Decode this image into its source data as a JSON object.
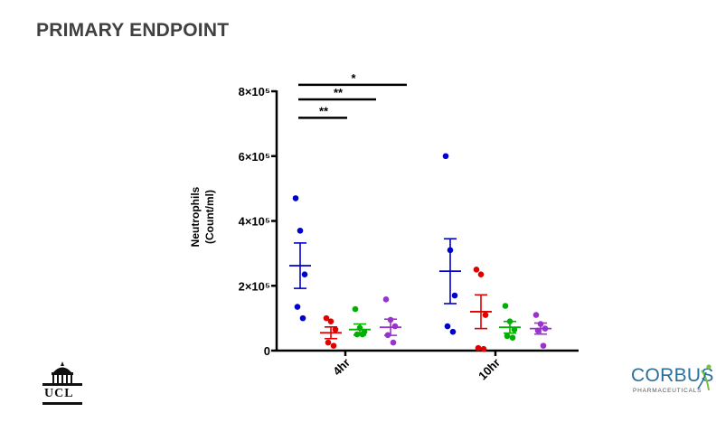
{
  "slide": {
    "title": "PRIMARY ENDPOINT"
  },
  "logos": {
    "left": "UCL",
    "right_name": "CORBUS",
    "right_sub": "PHARMACEUTICALS"
  },
  "chart_data": {
    "type": "scatter",
    "ylabel_line1": "Neutrophils",
    "ylabel_line2": "(Count/ml)",
    "yticks": [
      {
        "value": 0,
        "label": "0"
      },
      {
        "value": 200000,
        "label": "2×10⁵"
      },
      {
        "value": 400000,
        "label": "4×10⁵"
      },
      {
        "value": 600000,
        "label": "6×10⁵"
      },
      {
        "value": 800000,
        "label": "8×10⁵"
      }
    ],
    "ylim": [
      0,
      800000
    ],
    "groups": [
      "4hr",
      "10hr"
    ],
    "series": [
      {
        "color": "#0000cc",
        "points": [
          [
            470000,
            370000,
            235000,
            135000,
            100000
          ],
          [
            600000,
            310000,
            170000,
            75000,
            58000
          ]
        ],
        "mean": [
          262000,
          245000
        ],
        "sem": [
          70000,
          100000
        ]
      },
      {
        "color": "#e00000",
        "points": [
          [
            100000,
            90000,
            65000,
            25000,
            15000
          ],
          [
            250000,
            235000,
            110000,
            8000,
            5000
          ]
        ],
        "mean": [
          55000,
          120000
        ],
        "sem": [
          18000,
          52000
        ]
      },
      {
        "color": "#00b000",
        "points": [
          [
            128000,
            70000,
            58000,
            50000,
            50000
          ],
          [
            138000,
            90000,
            65000,
            45000,
            40000
          ]
        ],
        "mean": [
          65000,
          72000
        ],
        "sem": [
          17000,
          18000
        ]
      },
      {
        "color": "#9933cc",
        "points": [
          [
            158000,
            95000,
            75000,
            48000,
            25000
          ],
          [
            110000,
            82000,
            68000,
            62000,
            15000
          ]
        ],
        "mean": [
          72000,
          68000
        ],
        "sem": [
          25000,
          17000
        ]
      }
    ],
    "significance": [
      {
        "label": "*",
        "level": 820000
      },
      {
        "label": "**",
        "level": 775000
      },
      {
        "label": "**",
        "level": 718000
      }
    ]
  }
}
